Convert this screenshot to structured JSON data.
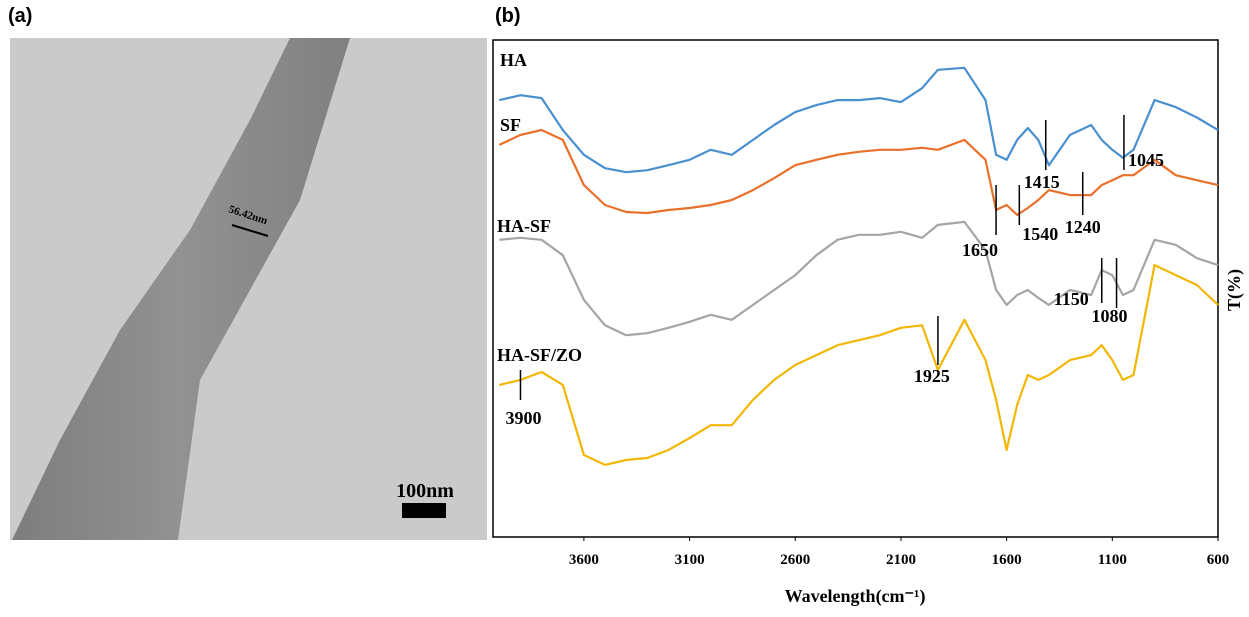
{
  "panels": {
    "a": "(a)",
    "b": "(b)"
  },
  "image": {
    "measurement": "56.42nm",
    "scale_bar": "100nm"
  },
  "chart_data": {
    "type": "line",
    "xlabel": "Wavelength(cm⁻¹)",
    "ylabel": "T(%)",
    "xlim": [
      4030,
      600
    ],
    "xticks": [
      3600,
      3100,
      2600,
      2100,
      1600,
      1100,
      600
    ],
    "ylim": [
      0,
      100
    ],
    "grid": false,
    "x": [
      4000,
      3900,
      3800,
      3700,
      3600,
      3500,
      3400,
      3300,
      3200,
      3100,
      3000,
      2900,
      2800,
      2700,
      2600,
      2500,
      2400,
      2300,
      2200,
      2100,
      2000,
      1925,
      1800,
      1700,
      1650,
      1600,
      1550,
      1500,
      1450,
      1400,
      1300,
      1200,
      1150,
      1100,
      1050,
      1000,
      900,
      800,
      700,
      600
    ],
    "series": [
      {
        "name": "HA",
        "color": "#4a8fd0",
        "values": [
          87.9,
          88.9,
          88.3,
          81.9,
          76.9,
          74.2,
          73.4,
          73.8,
          74.8,
          75.9,
          77.9,
          76.9,
          79.9,
          82.9,
          85.5,
          86.9,
          87.9,
          87.9,
          88.3,
          87.5,
          90.3,
          94.0,
          94.4,
          87.9,
          76.9,
          75.9,
          79.9,
          82.3,
          79.9,
          74.8,
          80.9,
          82.9,
          79.9,
          77.9,
          76.3,
          77.9,
          87.9,
          86.5,
          84.4,
          81.9
        ]
      },
      {
        "name": "SF",
        "color": "#e8702a",
        "values": [
          78.9,
          80.9,
          81.9,
          79.9,
          70.8,
          66.8,
          65.4,
          65.2,
          65.8,
          66.2,
          66.8,
          67.8,
          69.8,
          72.2,
          74.8,
          75.9,
          76.9,
          77.5,
          77.9,
          77.9,
          78.3,
          77.9,
          79.9,
          75.9,
          65.8,
          66.8,
          64.8,
          66.2,
          67.8,
          69.8,
          68.8,
          68.8,
          70.8,
          71.8,
          72.8,
          72.8,
          75.9,
          72.8,
          71.8,
          70.8
        ]
      },
      {
        "name": "HA-SF",
        "color": "#a5a5a5",
        "values": [
          59.8,
          60.2,
          59.8,
          56.7,
          47.7,
          42.6,
          40.6,
          41.0,
          42.1,
          43.3,
          44.7,
          43.7,
          46.7,
          49.7,
          52.7,
          56.7,
          59.8,
          60.8,
          60.8,
          61.4,
          60.2,
          62.8,
          63.4,
          57.7,
          49.7,
          46.7,
          48.7,
          49.7,
          48.1,
          46.7,
          49.7,
          48.7,
          53.7,
          52.7,
          48.7,
          49.7,
          59.8,
          58.8,
          56.1,
          54.7
        ]
      },
      {
        "name": "HA-SF/ZO",
        "color": "#f2b705",
        "values": [
          30.6,
          31.6,
          33.2,
          30.6,
          16.5,
          14.5,
          15.5,
          15.9,
          17.5,
          19.9,
          22.5,
          22.5,
          27.6,
          31.6,
          34.6,
          36.6,
          38.6,
          39.6,
          40.6,
          42.1,
          42.6,
          33.6,
          43.7,
          35.6,
          27.6,
          17.5,
          26.6,
          32.6,
          31.6,
          32.6,
          35.6,
          36.6,
          38.6,
          35.6,
          31.6,
          32.6,
          54.7,
          52.7,
          50.7,
          46.7
        ]
      }
    ],
    "annotations": [
      1415,
      1045,
      1650,
      1540,
      1240,
      1150,
      1080,
      1925,
      3900
    ]
  }
}
